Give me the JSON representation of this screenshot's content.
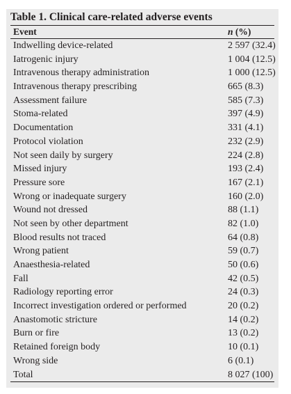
{
  "table": {
    "title": "Table 1. Clinical care-related adverse events",
    "header": {
      "event": "Event",
      "n_symbol": "n",
      "n_suffix": " (%)"
    },
    "rows": [
      {
        "event": "Indwelling device-related",
        "n": "2 597 (32.4)"
      },
      {
        "event": "Iatrogenic injury",
        "n": "1 004 (12.5)"
      },
      {
        "event": "Intravenous therapy administration",
        "n": "1 000 (12.5)"
      },
      {
        "event": "Intravenous therapy prescribing",
        "n": "665 (8.3)"
      },
      {
        "event": "Assessment failure",
        "n": "585 (7.3)"
      },
      {
        "event": "Stoma-related",
        "n": "397 (4.9)"
      },
      {
        "event": "Documentation",
        "n": "331 (4.1)"
      },
      {
        "event": "Protocol violation",
        "n": "232 (2.9)"
      },
      {
        "event": "Not seen daily by surgery",
        "n": "224 (2.8)"
      },
      {
        "event": "Missed injury",
        "n": "193 (2.4)"
      },
      {
        "event": "Pressure sore",
        "n": "167 (2.1)"
      },
      {
        "event": "Wrong or inadequate surgery",
        "n": "160 (2.0)"
      },
      {
        "event": "Wound not dressed",
        "n": "88 (1.1)"
      },
      {
        "event": "Not seen by other department",
        "n": "82 (1.0)"
      },
      {
        "event": "Blood results not traced",
        "n": "64 (0.8)"
      },
      {
        "event": "Wrong patient",
        "n": "59 (0.7)"
      },
      {
        "event": "Anaesthesia-related",
        "n": "50 (0.6)"
      },
      {
        "event": "Fall",
        "n": "42 (0.5)"
      },
      {
        "event": "Radiology reporting error",
        "n": "24 (0.3)"
      },
      {
        "event": "Incorrect investigation ordered or performed",
        "n": "20 (0.2)"
      },
      {
        "event": "Anastomotic stricture",
        "n": "14 (0.2)"
      },
      {
        "event": "Burn or fire",
        "n": "13 (0.2)"
      },
      {
        "event": "Retained foreign body",
        "n": "10 (0.1)"
      },
      {
        "event": "Wrong side",
        "n": "6 (0.1)"
      },
      {
        "event": "Total",
        "n": "8 027 (100)"
      }
    ]
  }
}
